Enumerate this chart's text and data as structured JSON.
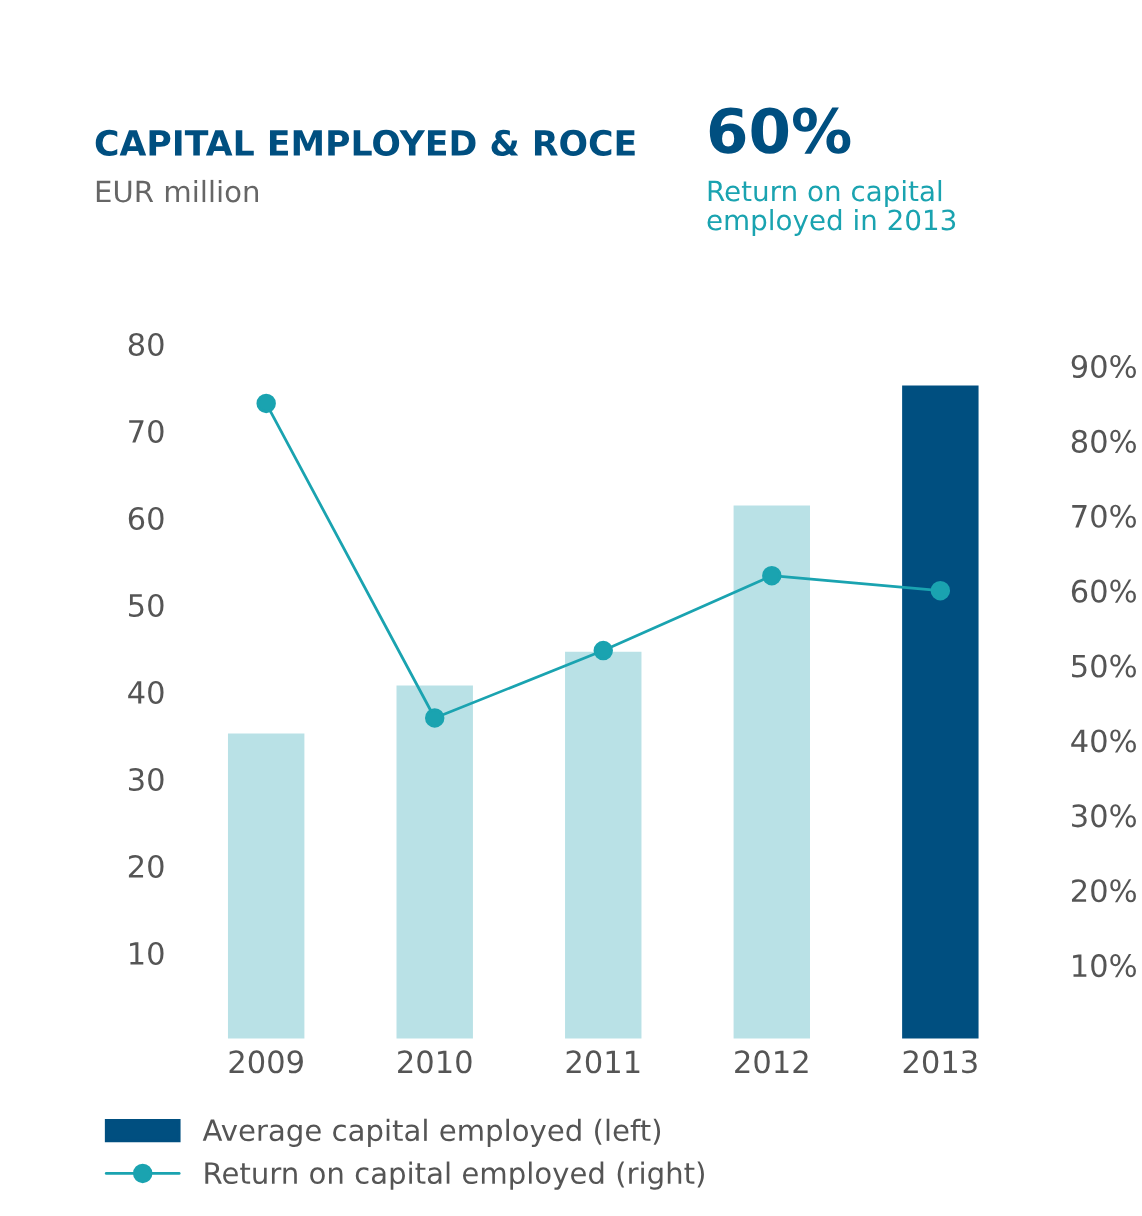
{
  "chart_data": {
    "type": "bar",
    "title": "CAPITAL EMPLOYED & ROCE",
    "subtitle": "EUR million",
    "annotations": [
      "60%",
      "Return on capital\nemployed in 2013"
    ],
    "categories": [
      "2009",
      "2010",
      "2011",
      "2012",
      "2013"
    ],
    "series": [
      {
        "name": "Average capital employed (left)",
        "color": "#004f80",
        "colors": [
          "#b9e1e6",
          "#b9e1e6",
          "#b9e1e6",
          "#b9e1e6",
          "#004f80"
        ],
        "values": [
          35.4,
          40.9,
          44.8,
          61.6,
          75.4
        ]
      },
      {
        "name": "Return on capital employed (right)",
        "type": "line",
        "axis": "y2",
        "color": "#1aa3b0",
        "marker": "circle",
        "values": [
          85,
          43,
          52,
          62,
          60
        ]
      }
    ],
    "ylim": [
      0,
      80
    ],
    "yticks": [
      10,
      20,
      30,
      40,
      50,
      60,
      70,
      80
    ],
    "y2lim": [
      0,
      90
    ],
    "y2ticks": [
      {
        "value": 10,
        "label": "10%"
      },
      {
        "value": 20,
        "label": "20%"
      },
      {
        "value": 30,
        "label": "30%"
      },
      {
        "value": 40,
        "label": "40%"
      },
      {
        "value": 50,
        "label": "50%"
      },
      {
        "value": 60,
        "label": "60%"
      },
      {
        "value": 70,
        "label": "70%"
      },
      {
        "value": 80,
        "label": "80%"
      },
      {
        "value": 90,
        "label": "90%"
      }
    ],
    "legend": "bottom",
    "grid": false
  }
}
